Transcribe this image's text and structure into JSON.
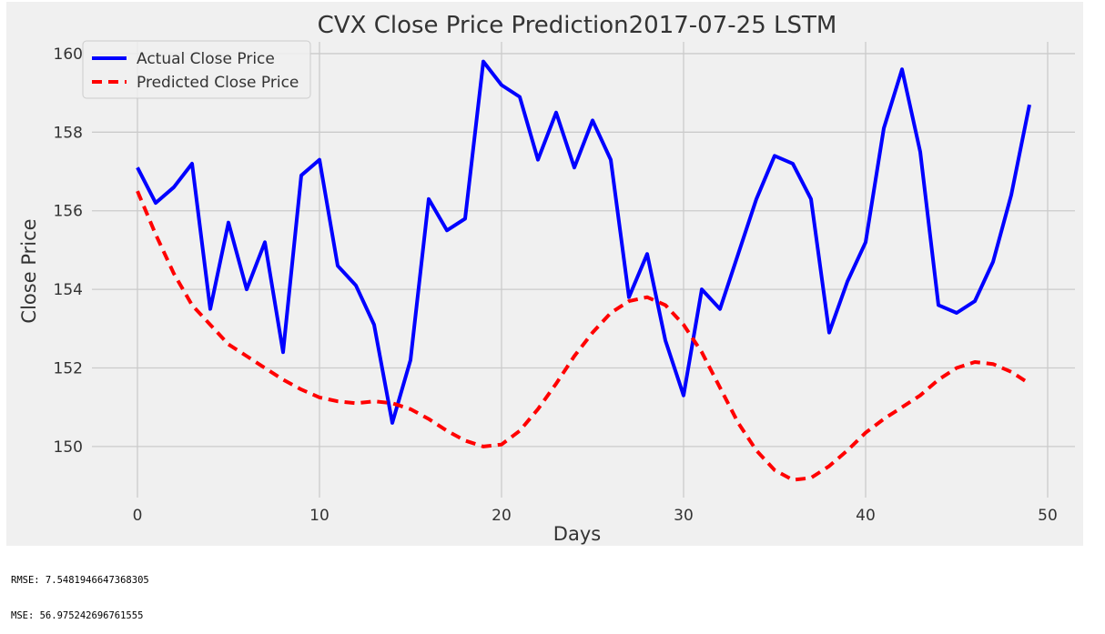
{
  "colors": {
    "figure_bg": "#f0f0f0",
    "grid": "#cbcbcb",
    "text": "#333333",
    "actual": "#0000ff",
    "predicted": "#ff0000"
  },
  "chart_data": {
    "type": "line",
    "title": "CVX Close Price Prediction2017-07-25 LSTM",
    "xlabel": "Days",
    "ylabel": "Close Price",
    "xlim": [
      -2.5,
      51.5
    ],
    "ylim": [
      148.7,
      160.3
    ],
    "xticks": [
      0,
      10,
      20,
      30,
      40,
      50
    ],
    "yticks": [
      150,
      152,
      154,
      156,
      158,
      160
    ],
    "grid": true,
    "legend_position": "top-left",
    "series": [
      {
        "name": "Actual Close Price",
        "color": "#0000ff",
        "style": "solid",
        "x": [
          0,
          1,
          2,
          3,
          4,
          5,
          6,
          7,
          8,
          9,
          10,
          11,
          12,
          13,
          14,
          15,
          16,
          17,
          18,
          19,
          20,
          21,
          22,
          23,
          24,
          25,
          26,
          27,
          28,
          29,
          30,
          31,
          32,
          33,
          34,
          35,
          36,
          37,
          38,
          39,
          40,
          41,
          42,
          43,
          44,
          45,
          46,
          47,
          48,
          49
        ],
        "values": [
          157.1,
          156.2,
          156.6,
          157.2,
          153.5,
          155.7,
          154.0,
          155.2,
          152.4,
          156.9,
          157.3,
          154.6,
          154.1,
          153.1,
          150.6,
          152.2,
          156.3,
          155.5,
          155.8,
          159.8,
          159.2,
          158.9,
          157.3,
          158.5,
          157.1,
          158.3,
          157.3,
          153.8,
          154.9,
          152.7,
          151.3,
          154.0,
          153.5,
          154.9,
          156.3,
          157.4,
          157.2,
          156.3,
          152.9,
          154.2,
          155.2,
          158.1,
          159.6,
          157.5,
          153.6,
          153.4,
          153.7,
          154.7,
          156.4,
          158.7
        ]
      },
      {
        "name": "Predicted Close Price",
        "color": "#ff0000",
        "style": "dashed",
        "x": [
          0,
          1,
          2,
          3,
          4,
          5,
          6,
          7,
          8,
          9,
          10,
          11,
          12,
          13,
          14,
          15,
          16,
          17,
          18,
          19,
          20,
          21,
          22,
          23,
          24,
          25,
          26,
          27,
          28,
          29,
          30,
          31,
          32,
          33,
          34,
          35,
          36,
          37,
          38,
          39,
          40,
          41,
          42,
          43,
          44,
          45,
          46,
          47,
          48,
          49
        ],
        "values": [
          156.5,
          155.4,
          154.4,
          153.6,
          153.1,
          152.6,
          152.3,
          152.0,
          151.7,
          151.45,
          151.25,
          151.15,
          151.1,
          151.15,
          151.1,
          150.95,
          150.7,
          150.4,
          150.15,
          150.0,
          150.05,
          150.4,
          150.95,
          151.6,
          152.3,
          152.9,
          153.4,
          153.7,
          153.8,
          153.6,
          153.1,
          152.4,
          151.5,
          150.6,
          149.9,
          149.4,
          149.15,
          149.2,
          149.5,
          149.9,
          150.35,
          150.7,
          151.0,
          151.3,
          151.7,
          152.0,
          152.15,
          152.1,
          151.9,
          151.6
        ]
      }
    ]
  },
  "metrics": {
    "rmse": "RMSE: 7.5481946647368305",
    "mse": "MSE: 56.975242696761555"
  }
}
